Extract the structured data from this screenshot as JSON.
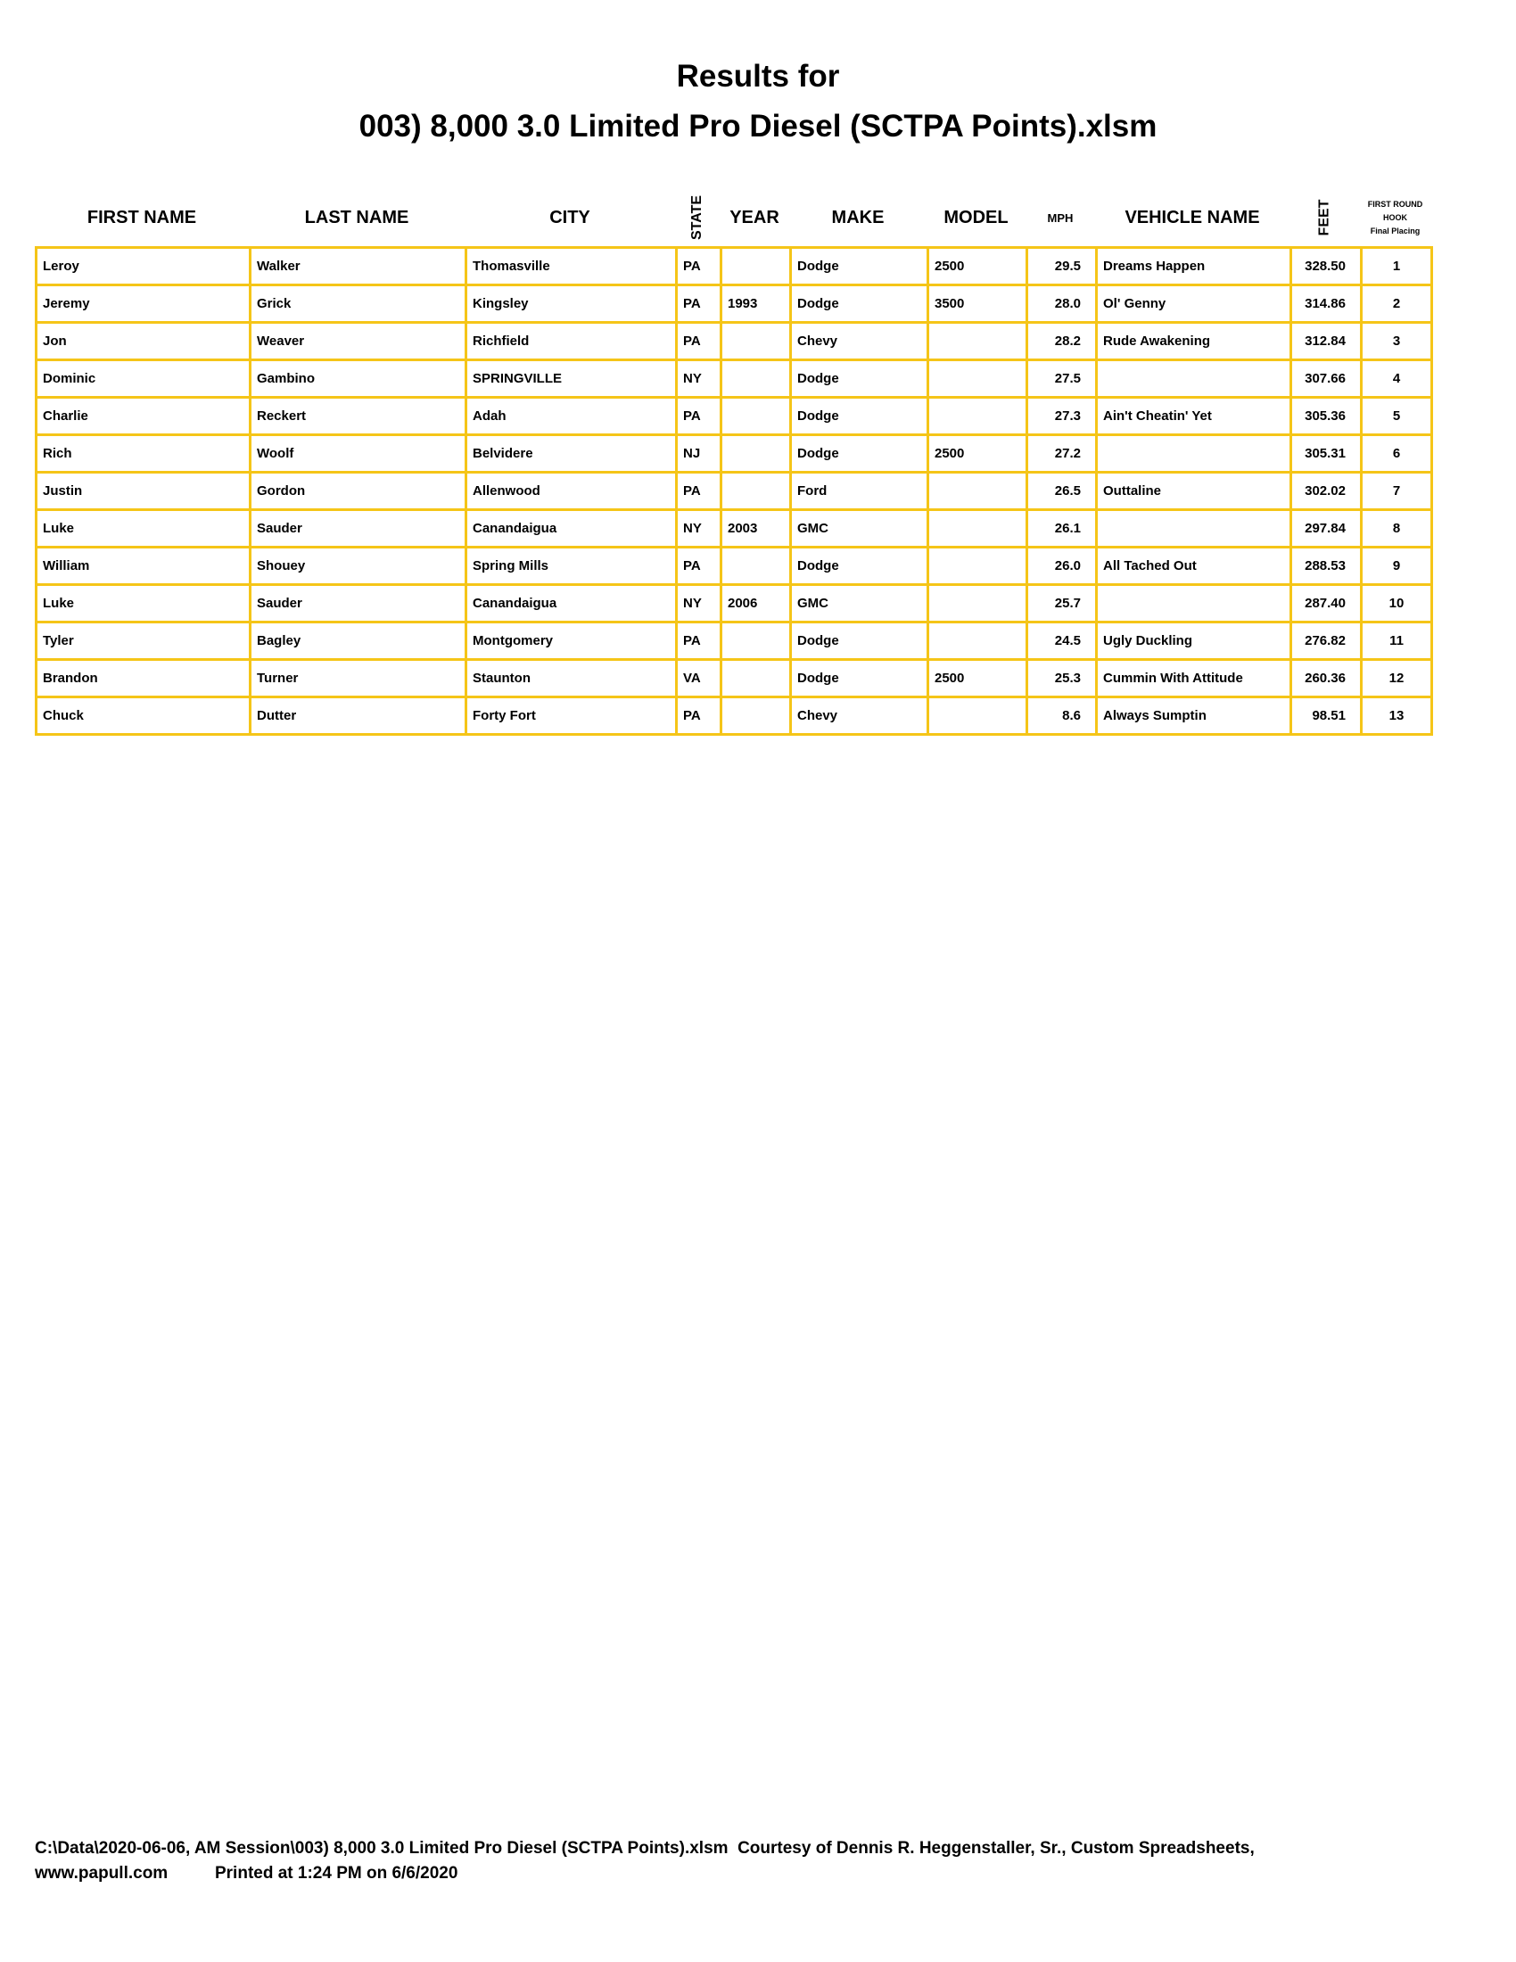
{
  "title": {
    "line1": "Results for",
    "line2": "003) 8,000 3.0 Limited Pro Diesel (SCTPA Points).xlsm"
  },
  "columns": [
    "FIRST NAME",
    "LAST NAME",
    "CITY",
    "STATE",
    "YEAR",
    "MAKE",
    "MODEL",
    "MPH",
    "VEHICLE NAME",
    "FEET"
  ],
  "placing_header": {
    "line1": "FIRST ROUND",
    "line2": "HOOK",
    "line3": "Final Placing"
  },
  "rows": [
    [
      "Leroy",
      "Walker",
      "Thomasville",
      "PA",
      "",
      "Dodge",
      "2500",
      "29.5",
      "Dreams Happen",
      "328.50",
      "1"
    ],
    [
      "Jeremy",
      "Grick",
      "Kingsley",
      "PA",
      "1993",
      "Dodge",
      "3500",
      "28.0",
      "Ol' Genny",
      "314.86",
      "2"
    ],
    [
      "Jon",
      "Weaver",
      "Richfield",
      "PA",
      "",
      "Chevy",
      "",
      "28.2",
      "Rude Awakening",
      "312.84",
      "3"
    ],
    [
      "Dominic",
      "Gambino",
      "SPRINGVILLE",
      "NY",
      "",
      "Dodge",
      "",
      "27.5",
      "",
      "307.66",
      "4"
    ],
    [
      "Charlie",
      "Reckert",
      "Adah",
      "PA",
      "",
      "Dodge",
      "",
      "27.3",
      "Ain't Cheatin' Yet",
      "305.36",
      "5"
    ],
    [
      "Rich",
      "Woolf",
      "Belvidere",
      "NJ",
      "",
      "Dodge",
      "2500",
      "27.2",
      "",
      "305.31",
      "6"
    ],
    [
      "Justin",
      "Gordon",
      "Allenwood",
      "PA",
      "",
      "Ford",
      "",
      "26.5",
      "Outtaline",
      "302.02",
      "7"
    ],
    [
      "Luke",
      "Sauder",
      "Canandaigua",
      "NY",
      "2003",
      "GMC",
      "",
      "26.1",
      "",
      "297.84",
      "8"
    ],
    [
      "William",
      "Shouey",
      "Spring Mills",
      "PA",
      "",
      "Dodge",
      "",
      "26.0",
      "All Tached Out",
      "288.53",
      "9"
    ],
    [
      "Luke",
      "Sauder",
      "Canandaigua",
      "NY",
      "2006",
      "GMC",
      "",
      "25.7",
      "",
      "287.40",
      "10"
    ],
    [
      "Tyler",
      "Bagley",
      "Montgomery",
      "PA",
      "",
      "Dodge",
      "",
      "24.5",
      "Ugly Duckling",
      "276.82",
      "11"
    ],
    [
      "Brandon",
      "Turner",
      "Staunton",
      "VA",
      "",
      "Dodge",
      "2500",
      "25.3",
      "Cummin With Attitude",
      "260.36",
      "12"
    ],
    [
      "Chuck",
      "Dutter",
      "Forty Fort",
      "PA",
      "",
      "Chevy",
      "",
      "8.6",
      "Always Sumptin",
      "98.51",
      "13"
    ]
  ],
  "footer": {
    "line1": "C:\\Data\\2020-06-06, AM Session\\003) 8,000 3.0 Limited Pro Diesel (SCTPA Points).xlsm  Courtesy of Dennis R. Heggenstaller, Sr., Custom Spreadsheets,",
    "line2": "www.papull.com          Printed at 1:24 PM on 6/6/2020"
  },
  "colors": {
    "grid": "#f5c518"
  }
}
